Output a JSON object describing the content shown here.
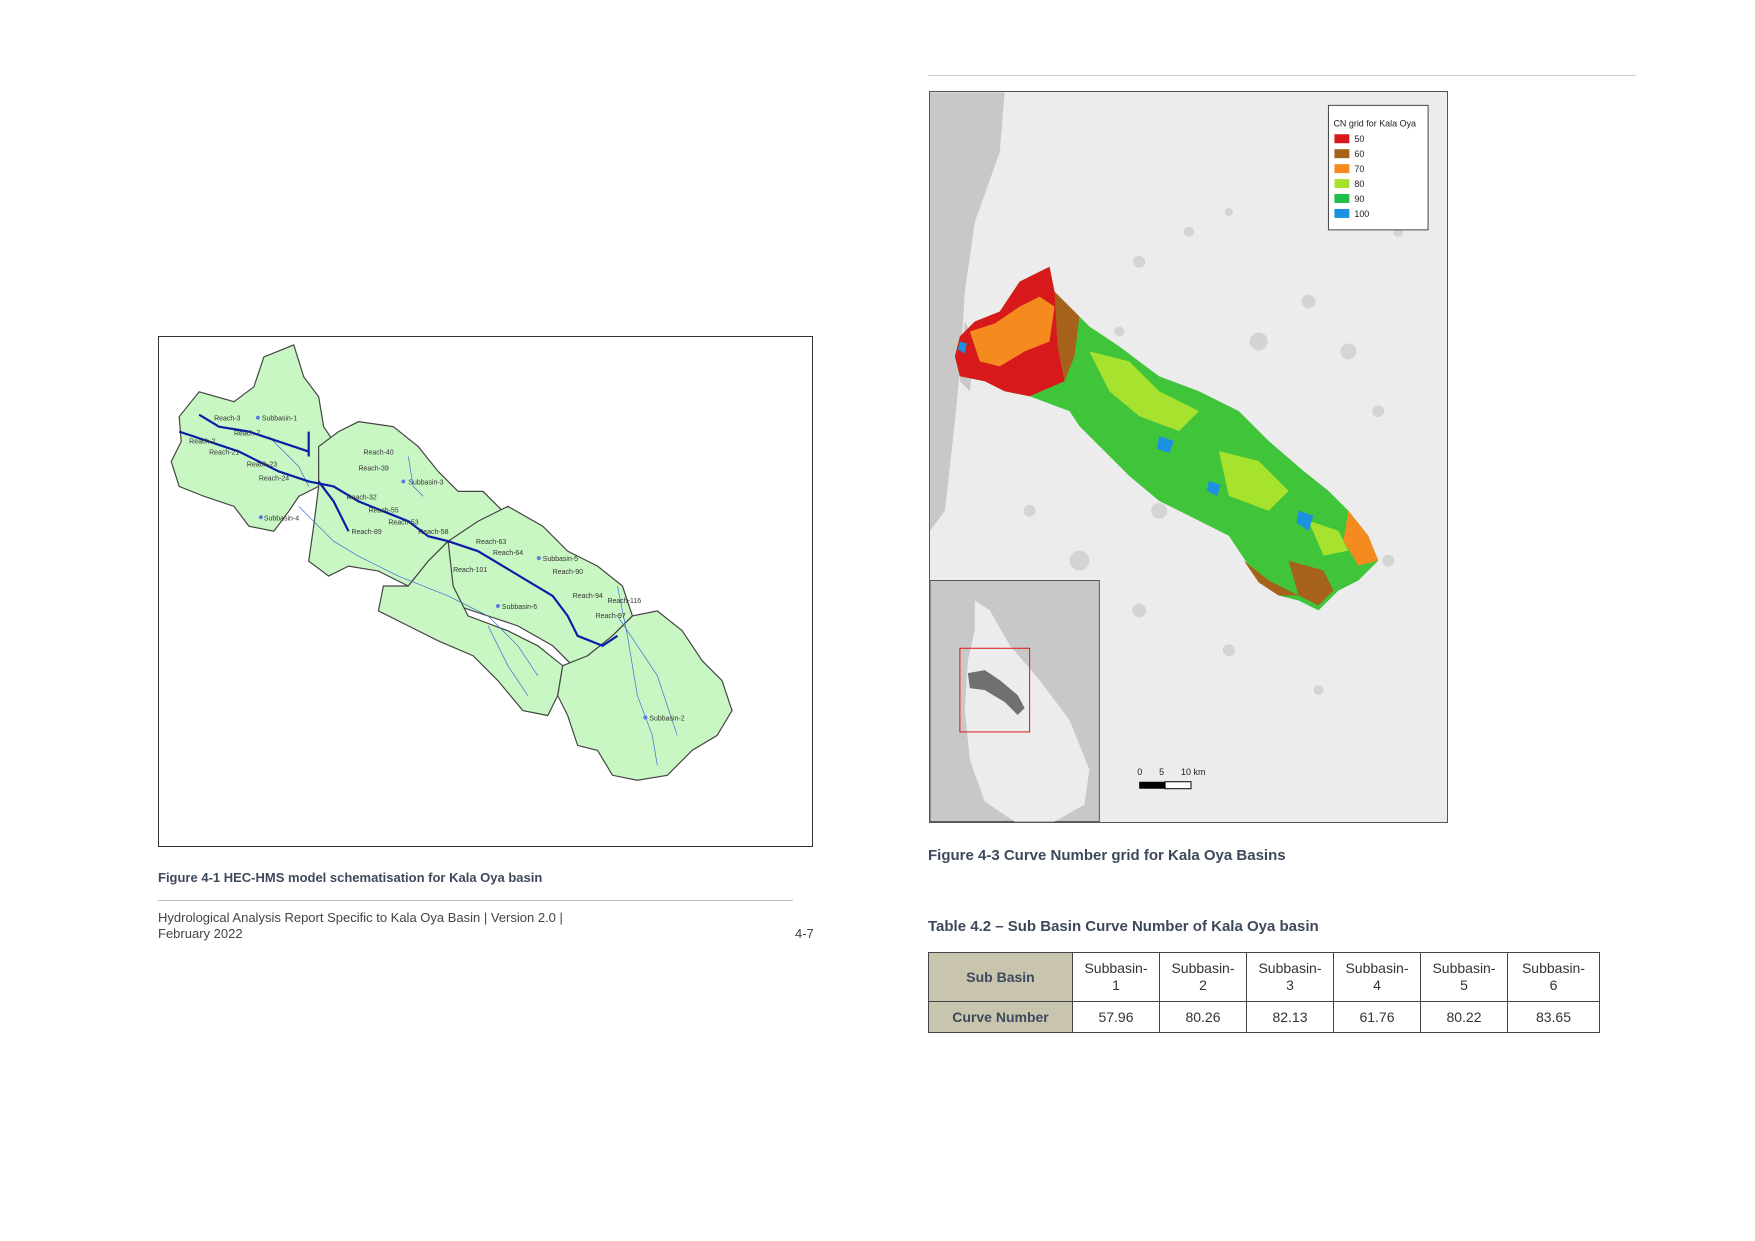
{
  "left_page": {
    "figure_caption": "Figure 4-1 HEC-HMS model schematisation for Kala Oya basin",
    "map_labels": {
      "reach_3": "Reach-3",
      "subbasin_1": "Subbasin-1",
      "reach_7": "Reach-7",
      "reach_2": "Reach-2",
      "reach_21": "Reach-21",
      "reach_23": "Reach-23",
      "reach_24": "Reach-24",
      "subbasin_4": "Subbasin-4",
      "reach_40": "Reach-40",
      "reach_39": "Reach-39",
      "subbasin_3": "Subbasin-3",
      "reach_32": "Reach-32",
      "reach_55": "Reach-55",
      "reach_53": "Reach-53",
      "reach_89": "Reach-89",
      "reach_58": "Reach-58",
      "reach_63": "Reach-63",
      "reach_64": "Reach-64",
      "subbasin_5": "Subbasin-5",
      "reach_101": "Reach-101",
      "reach_90": "Reach-90",
      "subbasin_6": "Subbasin-6",
      "reach_94": "Reach-94",
      "reach_116": "Reach-116",
      "reach_97": "Reach-97",
      "subbasin_2": "Subbasin-2"
    },
    "footer": {
      "text": "Hydrological Analysis Report Specific to Kala Oya Basin | Version 2.0 | February 2022",
      "page_number": "4-7"
    }
  },
  "right_page": {
    "figure_caption": "Figure 4-3 Curve Number grid for Kala Oya Basins",
    "legend": {
      "title": "CN grid for Kala Oya",
      "items": [
        {
          "label": "50",
          "color": "#d7191c"
        },
        {
          "label": "60",
          "color": "#a6611a"
        },
        {
          "label": "70",
          "color": "#f58b1f"
        },
        {
          "label": "80",
          "color": "#a6e22e"
        },
        {
          "label": "90",
          "color": "#1fbf4a"
        },
        {
          "label": "100",
          "color": "#1e90e0"
        }
      ]
    },
    "scale_bar": {
      "t0": "0",
      "t5": "5",
      "t10": "10 km"
    },
    "table_caption": "Table 4.2 – Sub Basin Curve Number of Kala Oya basin",
    "table": {
      "row1_header": "Sub Basin",
      "row2_header": "Curve Number",
      "columns": [
        "Subbasin-\n1",
        "Subbasin-\n2",
        "Subbasin-\n3",
        "Subbasin-\n4",
        "Subbasin-\n5",
        "Subbasin-\n6"
      ],
      "col1": "Subbasin-1",
      "values": [
        "57.96",
        "80.26",
        "82.13",
        "61.76",
        "80.22",
        "83.65"
      ]
    }
  }
}
